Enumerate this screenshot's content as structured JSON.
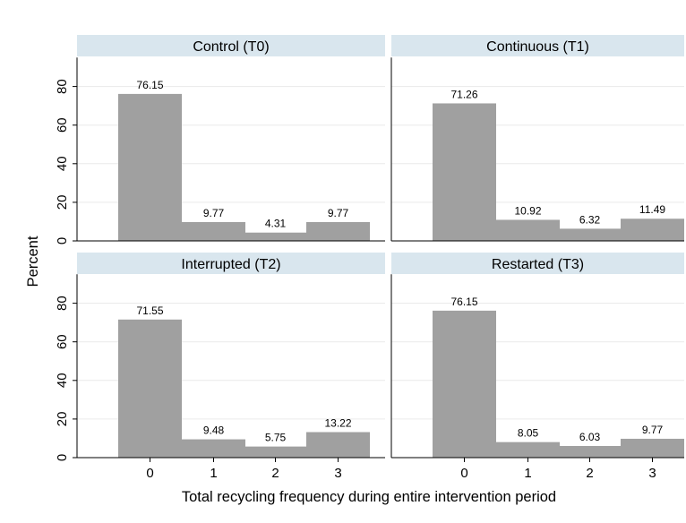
{
  "chart_data": {
    "type": "bar",
    "ylabel": "Percent",
    "xlabel": "Total recycling frequency during entire intervention period",
    "ylim": [
      0,
      95
    ],
    "yticks": [
      0,
      20,
      40,
      60,
      80
    ],
    "categories": [
      "0",
      "1",
      "2",
      "3"
    ],
    "grid": true,
    "panels": [
      {
        "title": "Control (T0)",
        "values": [
          76.15,
          9.77,
          4.31,
          9.77
        ],
        "labels": [
          "76.15",
          "9.77",
          "4.31",
          "9.77"
        ]
      },
      {
        "title": "Continuous (T1)",
        "values": [
          71.26,
          10.92,
          6.32,
          11.49
        ],
        "labels": [
          "71.26",
          "10.92",
          "6.32",
          "11.49"
        ]
      },
      {
        "title": "Interrupted (T2)",
        "values": [
          71.55,
          9.48,
          5.75,
          13.22
        ],
        "labels": [
          "71.55",
          "9.48",
          "5.75",
          "13.22"
        ]
      },
      {
        "title": "Restarted (T3)",
        "values": [
          76.15,
          8.05,
          6.03,
          9.77
        ],
        "labels": [
          "76.15",
          "8.05",
          "6.03",
          "9.77"
        ]
      }
    ],
    "colors": {
      "bar": "#a0a0a0",
      "strip": "#d9e6ee",
      "grid": "#eaeaea"
    }
  }
}
